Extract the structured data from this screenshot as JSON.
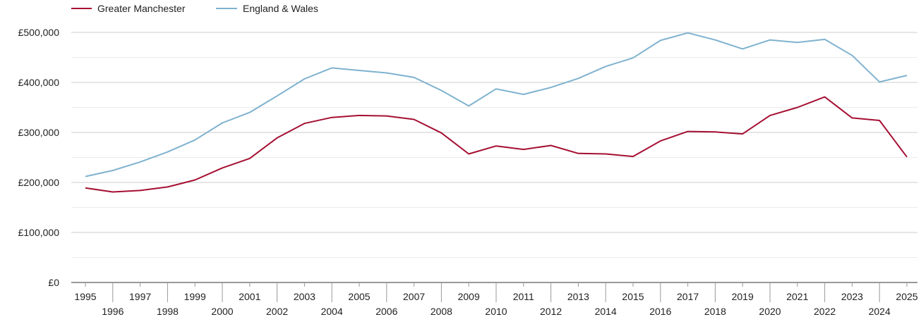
{
  "chart_data": {
    "type": "line",
    "title": "",
    "xlabel": "",
    "ylabel": "",
    "x": [
      1995,
      1996,
      1997,
      1998,
      1999,
      2000,
      2001,
      2002,
      2003,
      2004,
      2005,
      2006,
      2007,
      2008,
      2009,
      2010,
      2011,
      2012,
      2013,
      2014,
      2015,
      2016,
      2017,
      2018,
      2019,
      2020,
      2021,
      2022,
      2023,
      2024,
      2025
    ],
    "x_tick_labels": [
      "1995",
      "1996",
      "1997",
      "1998",
      "1999",
      "2000",
      "2001",
      "2002",
      "2003",
      "2004",
      "2005",
      "2006",
      "2007",
      "2008",
      "2009",
      "2010",
      "2011",
      "2012",
      "2013",
      "2014",
      "2015",
      "2016",
      "2017",
      "2018",
      "2019",
      "2020",
      "2021",
      "2022",
      "2023",
      "2024",
      "2025"
    ],
    "ylim": [
      0,
      500000
    ],
    "y_ticks": [
      0,
      100000,
      200000,
      300000,
      400000,
      500000
    ],
    "y_tick_labels": [
      "£0",
      "£100,000",
      "£200,000",
      "£300,000",
      "£400,000",
      "£500,000"
    ],
    "grid": true,
    "legend_position": "top-left",
    "series": [
      {
        "name": "Greater Manchester",
        "color": "#a50f32",
        "values": [
          189000,
          181000,
          184000,
          191000,
          205000,
          229000,
          248000,
          289000,
          318000,
          330000,
          334000,
          333000,
          326000,
          299000,
          257000,
          273000,
          266000,
          274000,
          258000,
          257000,
          252000,
          283000,
          302000,
          301000,
          297000,
          334000,
          350000,
          371000,
          329000,
          324000,
          251000
        ]
      },
      {
        "name": "England & Wales",
        "color": "#7fb2cf",
        "values": [
          212000,
          224000,
          241000,
          261000,
          285000,
          319000,
          340000,
          373000,
          407000,
          429000,
          424000,
          419000,
          410000,
          384000,
          353000,
          387000,
          376000,
          390000,
          408000,
          432000,
          449000,
          484000,
          499000,
          485000,
          467000,
          485000,
          480000,
          486000,
          454000,
          401000,
          414000
        ]
      }
    ]
  }
}
